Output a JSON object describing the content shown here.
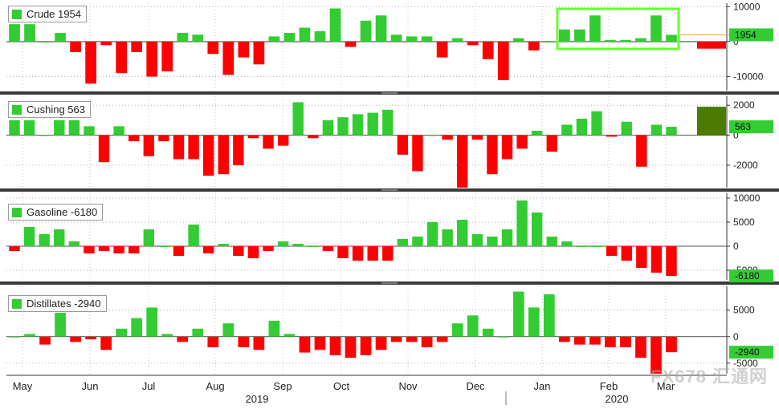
{
  "colors": {
    "positive": "#33cc33",
    "negative": "#ff0000",
    "highlight": "#66ff33",
    "cushing_label": "#4d7a00"
  },
  "x_axis": {
    "months": [
      "May",
      "Jun",
      "Jul",
      "Aug",
      "Sep",
      "Oct",
      "Nov",
      "Dec",
      "Jan",
      "Feb",
      "Mar"
    ],
    "years": [
      "2019",
      "2020"
    ]
  },
  "watermark_text": "FX678 汇通网",
  "chart_data": [
    {
      "type": "bar",
      "name": "Crude 1954",
      "last_label": "1954",
      "ylim": [
        -14000,
        11000
      ],
      "ticks": [
        10000,
        0,
        -10000
      ],
      "tick_labels": [
        "10000",
        "0",
        "-10000"
      ],
      "values": [
        5000,
        5000,
        0,
        2500,
        -3000,
        -12000,
        -1000,
        -9000,
        -3000,
        -10000,
        -8500,
        2500,
        2000,
        -3500,
        -9500,
        -4500,
        -6500,
        1500,
        2500,
        4000,
        3000,
        9500,
        -1500,
        6000,
        7500,
        2000,
        1500,
        1500,
        -4500,
        1000,
        -1000,
        -5000,
        -11000,
        1000,
        -2500,
        0,
        3500,
        3500,
        7500,
        500,
        500,
        1000,
        7500,
        1954
      ]
    },
    {
      "type": "bar",
      "name": "Cushing 563",
      "last_label": "563",
      "ylim": [
        -3500,
        2600
      ],
      "ticks": [
        2000,
        0,
        -2000
      ],
      "tick_labels": [
        "2000",
        "0",
        "-2000"
      ],
      "values": [
        1000,
        1000,
        0,
        1000,
        1000,
        600,
        -1800,
        600,
        -400,
        -1400,
        -400,
        -1600,
        -1600,
        -2700,
        -2600,
        -2000,
        -200,
        -900,
        -700,
        2200,
        -200,
        1000,
        1200,
        1400,
        1500,
        1700,
        -1300,
        -2400,
        0,
        -300,
        -3500,
        -300,
        -2600,
        -1600,
        -900,
        300,
        -1100,
        700,
        1100,
        1600,
        -100,
        900,
        -2100,
        700,
        563
      ]
    },
    {
      "type": "bar",
      "name": "Gasoline -6180",
      "last_label": "-6180",
      "ylim": [
        -7000,
        11000
      ],
      "ticks": [
        10000,
        5000,
        0,
        -5000
      ],
      "tick_labels": [
        "10000",
        "5000",
        "0",
        "-5000"
      ],
      "values": [
        -1000,
        4000,
        2500,
        3500,
        1000,
        -1500,
        -1000,
        -1500,
        -1500,
        3500,
        0,
        -2000,
        4500,
        -1500,
        500,
        -2000,
        -2500,
        -1000,
        1000,
        500,
        0,
        -1000,
        -2500,
        -3000,
        -3000,
        -3000,
        1500,
        2000,
        5000,
        3500,
        5500,
        2500,
        2000,
        3500,
        9500,
        7000,
        2000,
        1000,
        0,
        0,
        -2000,
        -3000,
        -4500,
        -5500,
        -6180
      ]
    },
    {
      "type": "bar",
      "name": "Distillates -2940",
      "last_label": "-2940",
      "ylim": [
        -7000,
        9500
      ],
      "ticks": [
        5000,
        0,
        -5000
      ],
      "tick_labels": [
        "5000",
        "0",
        "-5000"
      ],
      "values": [
        0,
        500,
        -1500,
        4500,
        -1000,
        -500,
        -2500,
        1500,
        3500,
        5500,
        500,
        -1000,
        1500,
        -2000,
        2500,
        -2000,
        -2500,
        3000,
        500,
        -3000,
        -2500,
        -3500,
        -4000,
        -3500,
        -2500,
        -1000,
        -1000,
        -2000,
        -1000,
        2500,
        4000,
        1500,
        0,
        8500,
        5500,
        8000,
        -1000,
        -1500,
        -1500,
        -2000,
        -2000,
        -4000,
        -7000,
        -2940
      ]
    }
  ]
}
